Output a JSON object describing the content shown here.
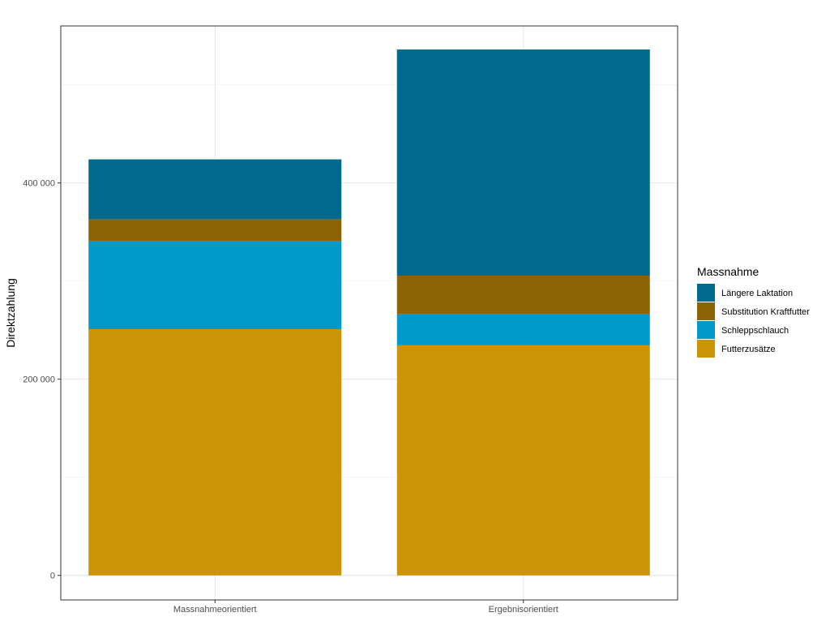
{
  "chart_data": {
    "type": "bar",
    "stacked": true,
    "title": "",
    "xlabel": "",
    "ylabel": "Direktzahlung",
    "ylim": [
      -25000,
      560000
    ],
    "yticks": [
      0,
      200000,
      400000
    ],
    "ytick_labels": [
      "0",
      "200 000",
      "400 000"
    ],
    "grid": true,
    "legend_position": "right",
    "legend_title": "Massnahme",
    "categories": [
      "Massnahmeorientiert",
      "Ergebnisorientiert"
    ],
    "series": [
      {
        "name": "Futterzusätze",
        "color": "#CC9509",
        "values": [
          251000,
          234500
        ]
      },
      {
        "name": "Schleppschlauch",
        "color": "#0099CC",
        "values": [
          89500,
          31500
        ]
      },
      {
        "name": "Substitution Kraftfutter",
        "color": "#8C6406",
        "values": [
          22500,
          39500
        ]
      },
      {
        "name": "Längere Laktation",
        "color": "#006A8E",
        "values": [
          61000,
          230500
        ]
      }
    ],
    "legend_order": [
      "Längere Laktation",
      "Substitution Kraftfutter",
      "Schleppschlauch",
      "Futterzusätze"
    ]
  }
}
